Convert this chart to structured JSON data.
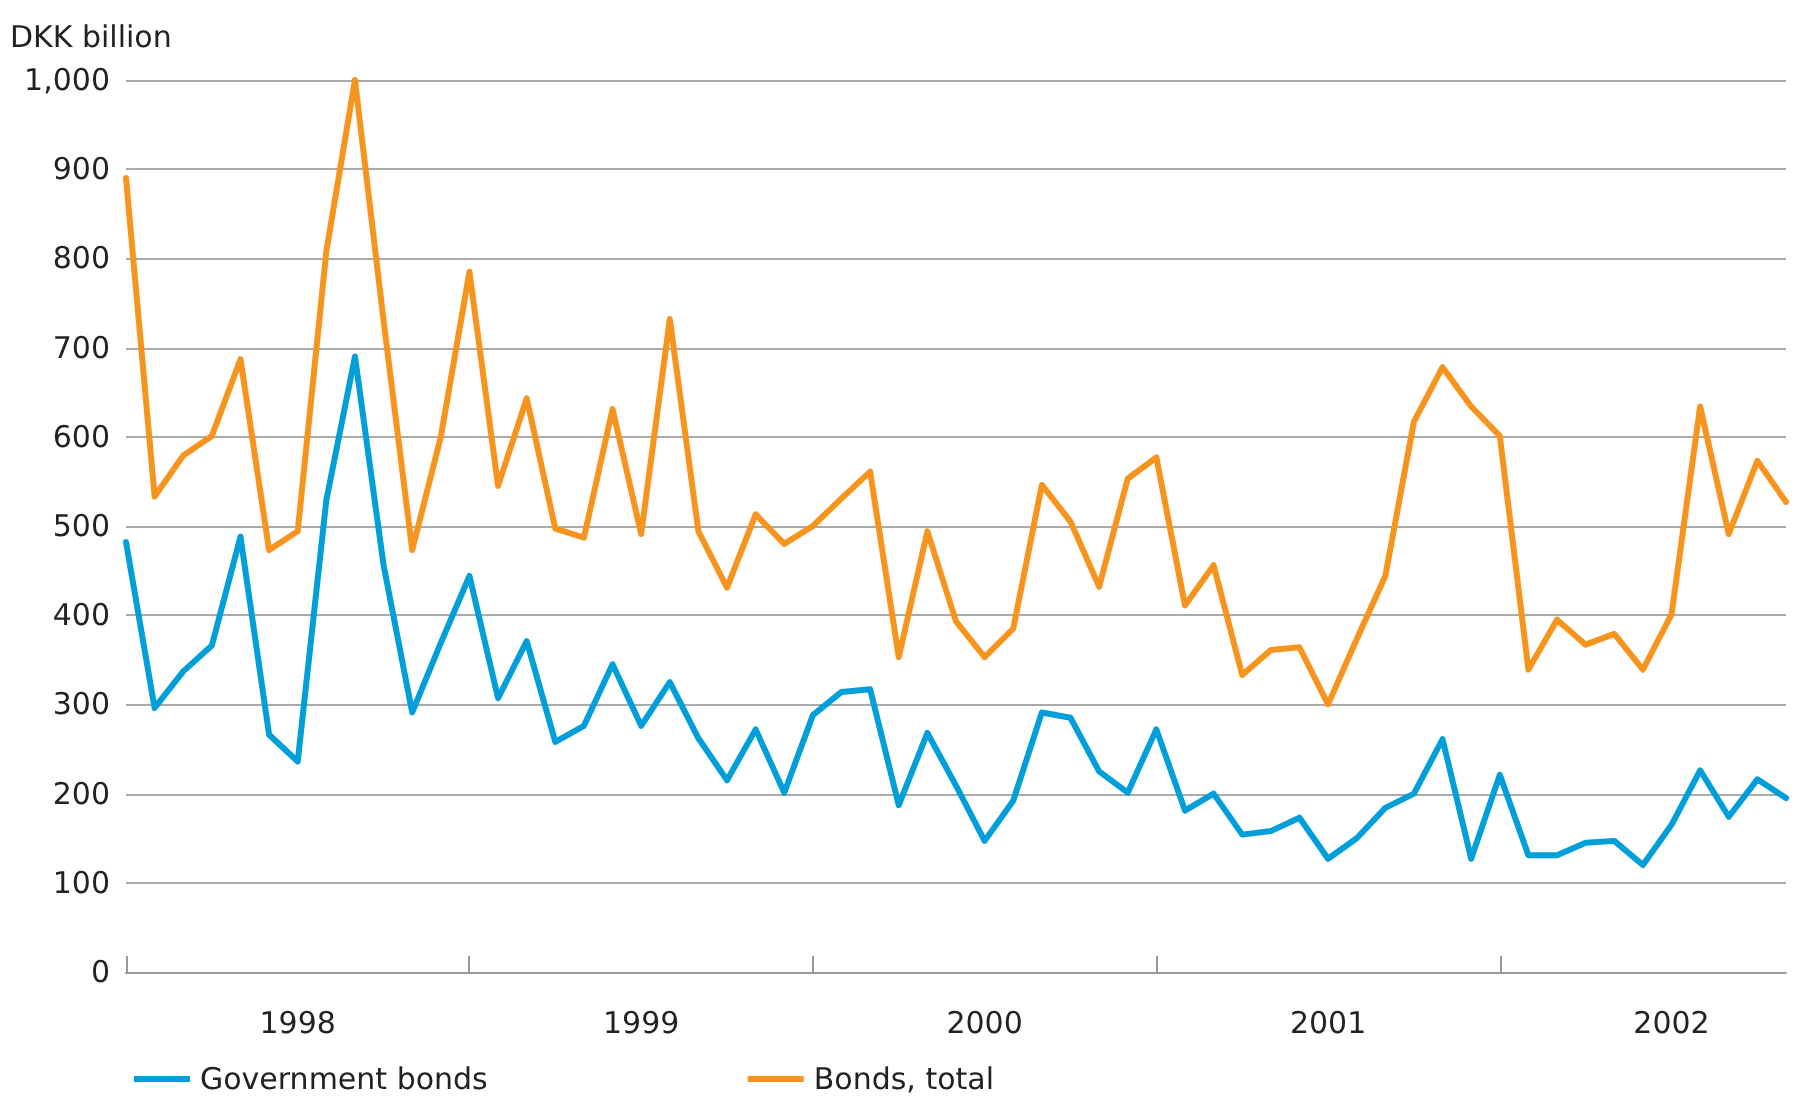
{
  "chart_data": {
    "type": "line",
    "ylabel": "DKK billion",
    "categories": [
      null,
      null,
      null,
      null,
      null,
      null,
      "1998",
      null,
      null,
      null,
      null,
      null,
      null,
      null,
      null,
      null,
      null,
      null,
      "1999",
      null,
      null,
      null,
      null,
      null,
      null,
      null,
      null,
      null,
      null,
      null,
      "2000",
      null,
      null,
      null,
      null,
      null,
      null,
      null,
      null,
      null,
      null,
      null,
      "2001",
      null,
      null,
      null,
      null,
      null,
      null,
      null,
      null,
      null,
      null,
      null,
      "2002",
      null,
      null,
      null,
      null
    ],
    "series": [
      {
        "name": "Government bonds",
        "color": "#009fda",
        "values": [
          482,
          296,
          337,
          366,
          488,
          266,
          236,
          529,
          690,
          456,
          291,
          369,
          444,
          307,
          371,
          258,
          276,
          345,
          276,
          325,
          262,
          215,
          272,
          201,
          288,
          314,
          317,
          187,
          268,
          209,
          147,
          192,
          291,
          285,
          225,
          201,
          272,
          181,
          200,
          154,
          158,
          173,
          127,
          150,
          184,
          200,
          261,
          127,
          221,
          131,
          131,
          145,
          147,
          120,
          165,
          226,
          174,
          216,
          195
        ]
      },
      {
        "name": "Bonds, total",
        "color": "#f7941d",
        "values": [
          890,
          533,
          579,
          601,
          687,
          473,
          494,
          808,
          1000,
          730,
          473,
          600,
          785,
          545,
          643,
          497,
          487,
          631,
          491,
          732,
          494,
          431,
          513,
          480,
          500,
          531,
          561,
          353,
          494,
          393,
          353,
          385,
          546,
          505,
          432,
          553,
          577,
          411,
          456,
          333,
          361,
          364,
          300,
          373,
          444,
          617,
          678,
          634,
          601,
          339,
          395,
          367,
          379,
          339,
          401,
          634,
          491,
          573,
          527
        ]
      }
    ],
    "ylim": [
      0,
      1000
    ],
    "yticks": [
      0,
      100,
      200,
      300,
      400,
      500,
      600,
      700,
      800,
      900,
      {
        "value": 1000,
        "label": "1,000"
      }
    ],
    "grid": "y",
    "legend": "bottom left",
    "marker": "none",
    "line_style": "solid"
  }
}
